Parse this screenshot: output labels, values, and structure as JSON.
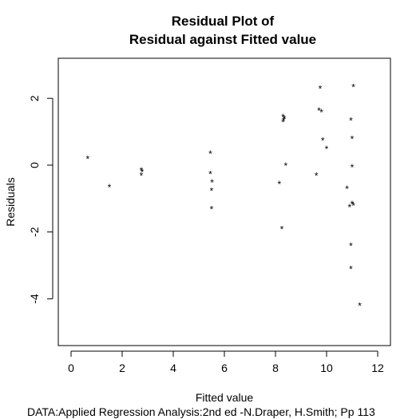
{
  "chart_data": {
    "type": "scatter",
    "title_line1": "Residual Plot of",
    "title_line2": "Residual against Fitted value",
    "xlabel": "Fitted value",
    "ylabel": "Residuals",
    "source": "DATA:Applied Regression Analysis:2nd ed -N.Draper, H.Smith; Pp 113",
    "marker": "*",
    "xlim": [
      -0.5,
      12.5
    ],
    "ylim": [
      -5.4,
      3.2
    ],
    "xticks": [
      0,
      2,
      4,
      6,
      8,
      10,
      12
    ],
    "yticks": [
      -4,
      -2,
      0,
      2
    ],
    "xtick_labels": [
      "0",
      "2",
      "4",
      "6",
      "8",
      "10",
      "12"
    ],
    "ytick_labels": [
      "-4",
      "-2",
      "0",
      "2"
    ],
    "x": [
      0.65,
      1.5,
      2.75,
      2.75,
      2.78,
      5.45,
      5.45,
      5.5,
      5.5,
      5.52,
      8.15,
      8.25,
      8.3,
      8.3,
      8.32,
      8.35,
      8.4,
      9.6,
      9.7,
      9.75,
      9.8,
      9.85,
      10.0,
      10.8,
      10.9,
      10.95,
      10.95,
      10.95,
      11.0,
      11.0,
      11.0,
      11.05,
      11.05,
      11.3
    ],
    "y": [
      0.25,
      -0.6,
      -0.1,
      -0.25,
      -0.15,
      0.4,
      -0.2,
      -0.7,
      -1.25,
      -0.45,
      -0.5,
      -1.85,
      1.5,
      1.35,
      1.4,
      1.45,
      0.05,
      -0.25,
      1.7,
      2.35,
      1.65,
      0.8,
      0.55,
      -0.65,
      -1.2,
      1.4,
      -3.05,
      -2.35,
      0.85,
      0.0,
      -1.1,
      2.4,
      -1.15,
      -4.15
    ]
  }
}
